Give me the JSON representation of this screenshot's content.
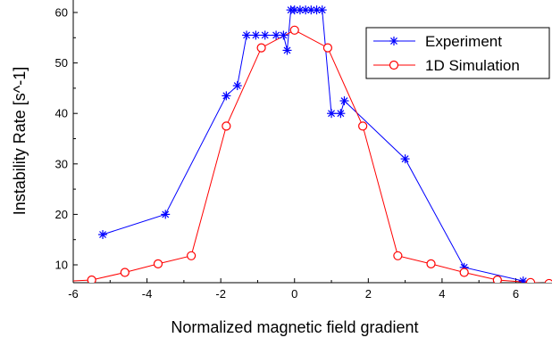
{
  "chart_data": {
    "type": "line",
    "xlabel": "Normalized magnetic field gradient",
    "ylabel": "Instability Rate [s^-1]",
    "xlim": [
      -6,
      6.5
    ],
    "ylim": [
      7,
      61
    ],
    "x_ticks": [
      -6,
      -4,
      -2,
      0,
      2,
      4,
      6
    ],
    "x_tick_labels": [
      "-6",
      "-4",
      "-2",
      "0",
      "2",
      "4",
      "6"
    ],
    "y_ticks": [
      10,
      20,
      30,
      40,
      50,
      60
    ],
    "y_tick_labels": [
      "10",
      "20",
      "30",
      "40",
      "50",
      "60"
    ],
    "grid": false,
    "legend_position": "top-right",
    "series": [
      {
        "name": "Experiment",
        "color": "#0000ff",
        "marker": "asterisk",
        "x": [
          -5.2,
          -3.5,
          -1.85,
          -1.55,
          -1.3,
          -1.05,
          -0.8,
          -0.5,
          -0.3,
          -0.2,
          -0.1,
          0.0,
          0.15,
          0.3,
          0.45,
          0.6,
          0.75,
          1.0,
          1.25,
          1.35,
          3.0,
          4.6,
          6.2
        ],
        "y": [
          16,
          20,
          43.5,
          45.5,
          55.5,
          55.5,
          55.5,
          55.5,
          55.5,
          52.5,
          60.5,
          60.5,
          60.5,
          60.5,
          60.5,
          60.5,
          60.5,
          40,
          40,
          42.5,
          31,
          9.5,
          6.8
        ]
      },
      {
        "name": "1D Simulation",
        "color": "#ff0000",
        "marker": "circle",
        "x": [
          -6.9,
          -5.5,
          -4.6,
          -3.7,
          -2.8,
          -1.85,
          -0.9,
          0.0,
          0.9,
          1.85,
          2.8,
          3.7,
          4.6,
          5.5,
          6.4,
          6.9
        ],
        "y": [
          6.5,
          7.0,
          8.5,
          10.2,
          11.8,
          37.5,
          53,
          56.5,
          53,
          37.5,
          11.8,
          10.2,
          8.5,
          7.0,
          6.5,
          6.3
        ]
      }
    ]
  }
}
